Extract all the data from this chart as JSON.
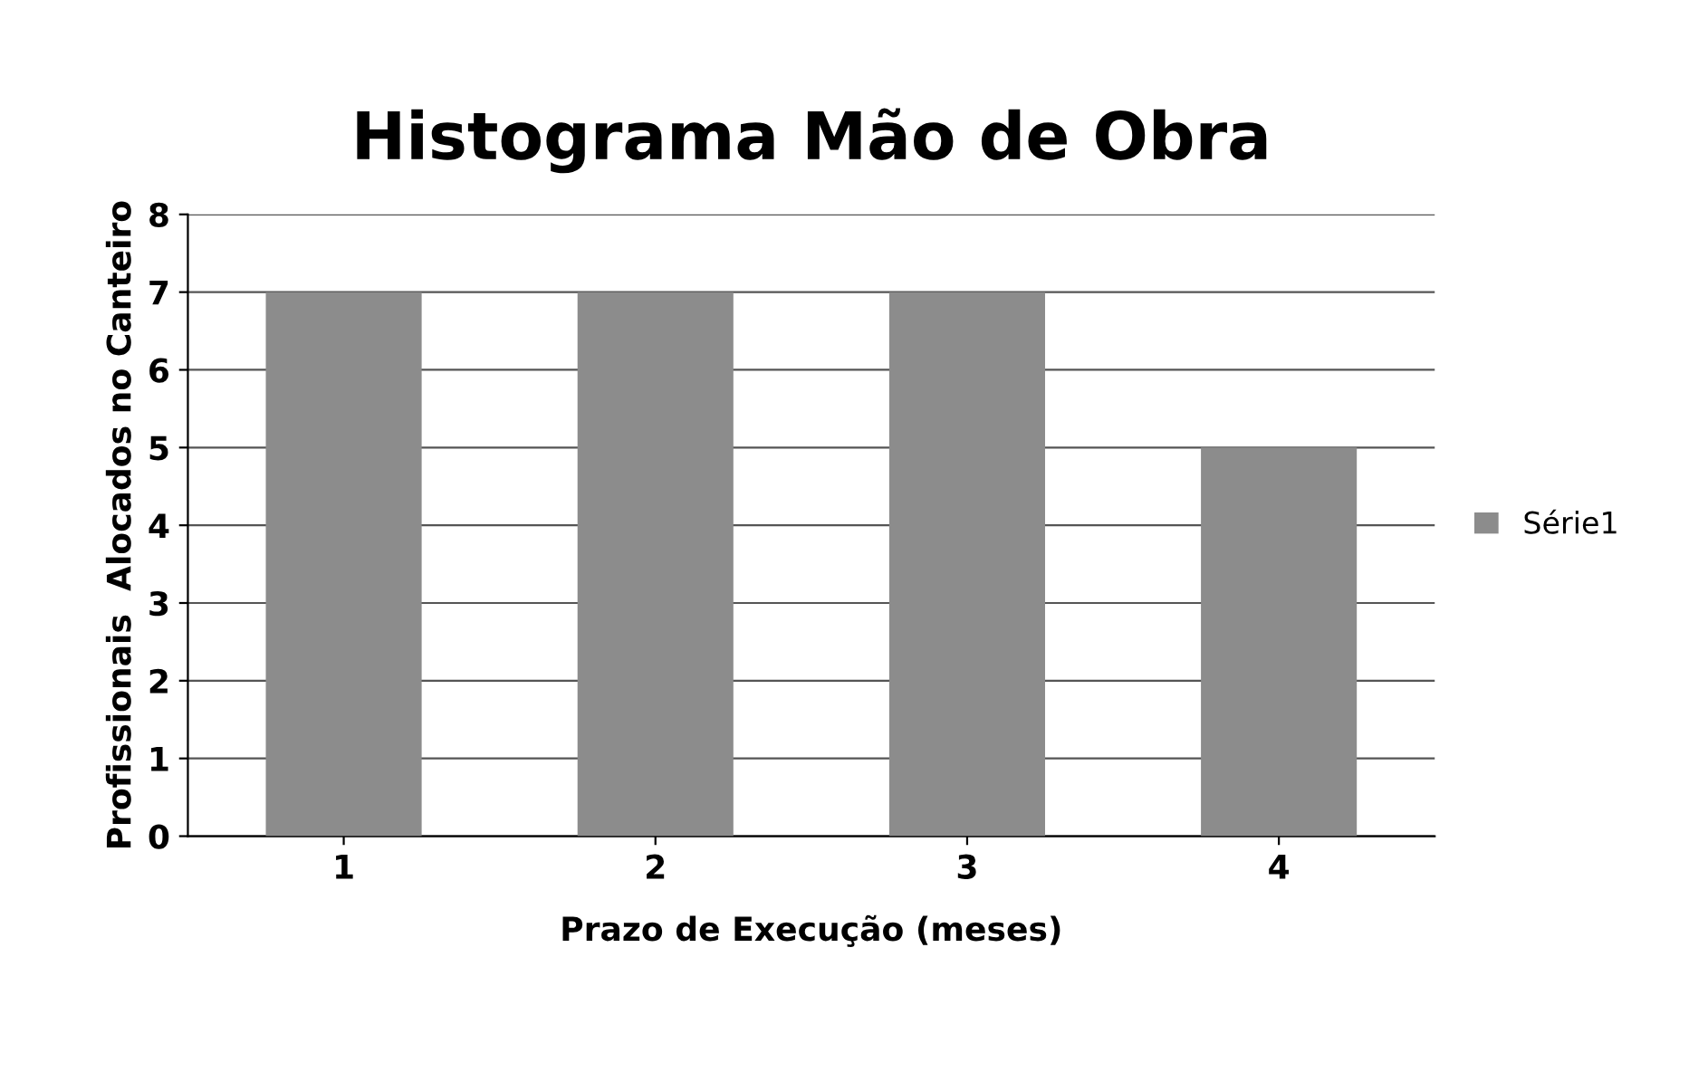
{
  "chart_data": {
    "type": "bar",
    "title": "Histograma Mão de Obra",
    "xlabel": "Prazo de Execução (meses)",
    "ylabel": "Profissionais  Alocados no Canteiro",
    "categories": [
      "1",
      "2",
      "3",
      "4"
    ],
    "series": [
      {
        "name": "Série1",
        "color": "#8c8c8c",
        "values": [
          7,
          7,
          7,
          5
        ]
      }
    ],
    "ylim": [
      0,
      8
    ],
    "yticks": [
      0,
      1,
      2,
      3,
      4,
      5,
      6,
      7,
      8
    ],
    "grid": "y",
    "legend": "right"
  }
}
